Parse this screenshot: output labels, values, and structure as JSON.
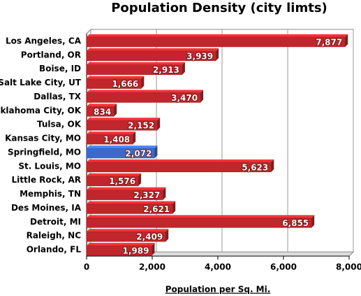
{
  "chart_data": {
    "type": "bar",
    "orientation": "horizontal",
    "title": "Population Density (city limts)",
    "x_label": "Population per Sq. Mi.",
    "categories": [
      "Los Angeles, CA",
      "Portland, OR",
      "Boise, ID",
      "Salt Lake City, UT",
      "Dallas, TX",
      "Oklahoma City, OK",
      "Tulsa, OK",
      "Kansas City, MO",
      "Springfield, MO",
      "St. Louis, MO",
      "Little Rock, AR",
      "Memphis, TN",
      "Des Moines, IA",
      "Detroit, MI",
      "Raleigh, NC",
      "Orlando, FL"
    ],
    "values": [
      7877,
      3939,
      2913,
      1666,
      3470,
      834,
      2152,
      1408,
      2072,
      5623,
      1576,
      2327,
      2621,
      6855,
      2409,
      1989
    ],
    "value_labels": [
      "7,877",
      "3,939",
      "2,913",
      "1,666",
      "3,470",
      "834",
      "2,152",
      "1,408",
      "2,072",
      "5,623",
      "1,576",
      "2,327",
      "2,621",
      "6,855",
      "2,409",
      "1,989"
    ],
    "colors": [
      "#c0262b",
      "#c0262b",
      "#c0262b",
      "#c0262b",
      "#c0262b",
      "#c0262b",
      "#c0262b",
      "#c0262b",
      "#3a6acd",
      "#c0262b",
      "#c0262b",
      "#c0262b",
      "#c0262b",
      "#c0262b",
      "#c0262b",
      "#c0262b"
    ],
    "xlim": [
      0,
      8000
    ],
    "xticks": [
      0,
      {
        "value": 2000,
        "label": "2,000"
      },
      {
        "value": 4000,
        "label": "4,000"
      },
      {
        "value": 6000,
        "label": "6,000"
      },
      {
        "value": 8000,
        "label": "8,000"
      }
    ],
    "grid": true
  }
}
